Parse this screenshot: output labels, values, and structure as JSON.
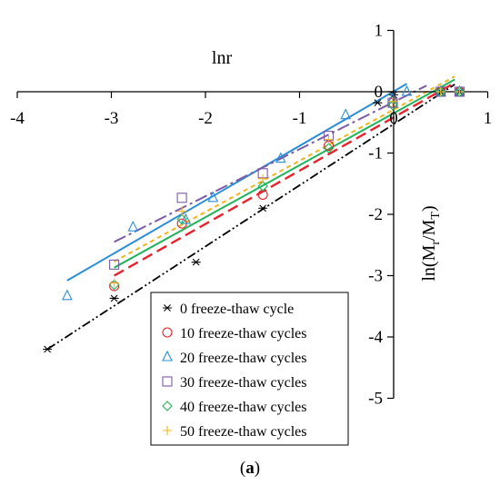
{
  "chart_data": {
    "type": "scatter",
    "title": "",
    "xlabel": "lnr",
    "ylabel": "ln(M",
    "ylabel_sub1": "r",
    "ylabel_mid": "/M",
    "ylabel_sub2": "T",
    "ylabel_end": ")",
    "xlim": [
      -4,
      1
    ],
    "ylim": [
      -5,
      1
    ],
    "xticks": [
      -4,
      -3,
      -2,
      -1,
      0,
      1
    ],
    "yticks": [
      -5,
      -4,
      -3,
      -2,
      -1,
      0,
      1
    ],
    "xtick_labels": [
      "-4",
      "-3",
      "-2",
      "-1",
      "0",
      "1"
    ],
    "ytick_labels": [
      "-5",
      "-4",
      "-3",
      "-2",
      "-1",
      "0",
      "1"
    ],
    "caption_open": "(",
    "caption_letter": "a",
    "caption_close": ")",
    "legend_position": "bottom-center",
    "series": [
      {
        "name": "0 freeze-thaw cycle",
        "marker": "asterisk",
        "color": "#000000",
        "line_style": "dashdotdot",
        "x": [
          -3.68,
          -2.97,
          -2.1,
          -1.39,
          -0.17,
          0.0,
          0.5,
          0.7
        ],
        "y": [
          -4.2,
          -3.37,
          -2.78,
          -1.9,
          -0.18,
          -0.05,
          0.0,
          0.0
        ],
        "fit": {
          "x": [
            -3.68,
            0.65
          ],
          "y": [
            -4.2,
            0.12
          ]
        }
      },
      {
        "name": "10 freeze-thaw cycles",
        "marker": "circle",
        "color": "#e8212b",
        "line_style": "dashed",
        "x": [
          -2.97,
          -2.25,
          -1.39,
          -0.69,
          -0.01,
          0.5,
          0.7
        ],
        "y": [
          -3.17,
          -2.15,
          -1.68,
          -0.88,
          -0.18,
          0.0,
          0.0
        ],
        "fit": {
          "x": [
            -2.97,
            0.62
          ],
          "y": [
            -3.0,
            0.12
          ]
        }
      },
      {
        "name": "20 freeze-thaw cycles",
        "marker": "triangle",
        "color": "#2a8fd8",
        "line_style": "solid",
        "x": [
          -3.47,
          -2.77,
          -2.21,
          -1.92,
          -1.2,
          -0.51,
          -0.01,
          0.14,
          0.5,
          0.7
        ],
        "y": [
          -3.33,
          -2.21,
          -2.09,
          -1.73,
          -1.09,
          -0.38,
          -0.12,
          0.0,
          0.0,
          0.0
        ],
        "fit": {
          "x": [
            -3.47,
            0.14
          ],
          "y": [
            -3.08,
            0.13
          ]
        }
      },
      {
        "name": "30 freeze-thaw cycles",
        "marker": "square",
        "color": "#7d5aa6",
        "line_style": "longdashdot",
        "x": [
          -2.97,
          -2.25,
          -1.39,
          -0.69,
          -0.01,
          0.5,
          0.7
        ],
        "y": [
          -2.82,
          -1.73,
          -1.33,
          -0.72,
          -0.18,
          0.0,
          0.0
        ],
        "fit": {
          "x": [
            -2.97,
            0.35
          ],
          "y": [
            -2.45,
            0.1
          ]
        }
      },
      {
        "name": "40 freeze-thaw cycles",
        "marker": "diamond",
        "color": "#1fb35a",
        "line_style": "solid",
        "x": [
          -2.97,
          -2.25,
          -1.39,
          -0.69,
          -0.01,
          0.5,
          0.7
        ],
        "y": [
          -3.15,
          -2.08,
          -1.54,
          -0.92,
          -0.22,
          0.0,
          0.0
        ],
        "fit": {
          "x": [
            -2.97,
            0.65
          ],
          "y": [
            -2.87,
            0.2
          ]
        }
      },
      {
        "name": "50 freeze-thaw cycles",
        "marker": "plus",
        "color": "#f2b31b",
        "line_style": "shortdash",
        "x": [
          -2.97,
          -2.25,
          -1.39,
          -0.69,
          -0.01,
          0.5,
          0.7
        ],
        "y": [
          -3.12,
          -1.95,
          -1.42,
          -0.78,
          -0.16,
          0.0,
          0.0
        ],
        "fit": {
          "x": [
            -2.97,
            0.65
          ],
          "y": [
            -2.77,
            0.25
          ]
        }
      }
    ]
  }
}
